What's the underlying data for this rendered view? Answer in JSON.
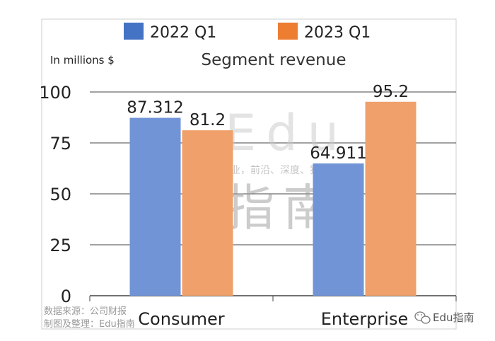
{
  "chart_data": {
    "type": "bar",
    "title": "Segment revenue",
    "unit_label": "In millions $",
    "categories": [
      "Consumer",
      "Enterprise"
    ],
    "series": [
      {
        "name": "2022 Q1",
        "values": [
          87.312,
          64.911
        ],
        "labels": [
          "87.312",
          "64.911"
        ]
      },
      {
        "name": "2023 Q1",
        "values": [
          81.2,
          95.2
        ],
        "labels": [
          "81.2",
          "95.2"
        ]
      }
    ],
    "ylim": [
      0,
      100
    ],
    "yticks": [
      0,
      25,
      50,
      75,
      100
    ],
    "grid": true,
    "legend_position": "top"
  },
  "colors": {
    "series_0": "#7094d6",
    "series_1": "#f0a06a",
    "legend_0": "#4472c4",
    "legend_1": "#ed7d31",
    "grid": "#444444",
    "text": "#222222"
  },
  "watermark": {
    "brand": "Edu",
    "brand_cn": "指南",
    "tagline": "教育行业，前沿、深度、独家"
  },
  "footer": {
    "source": "数据来源：公司财报",
    "credit": "制图及整理：Edu指南",
    "account": "Edu指南"
  }
}
